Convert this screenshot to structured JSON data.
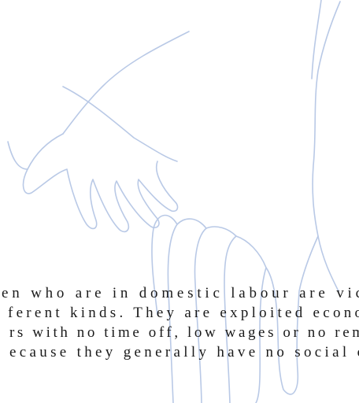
{
  "document": {
    "lines": [
      "en who are in domestic labour are vic",
      "ferent kinds. They are exploited econo",
      "rs with no time off, low wages or no rem",
      "ecause they generally have no social c"
    ]
  }
}
